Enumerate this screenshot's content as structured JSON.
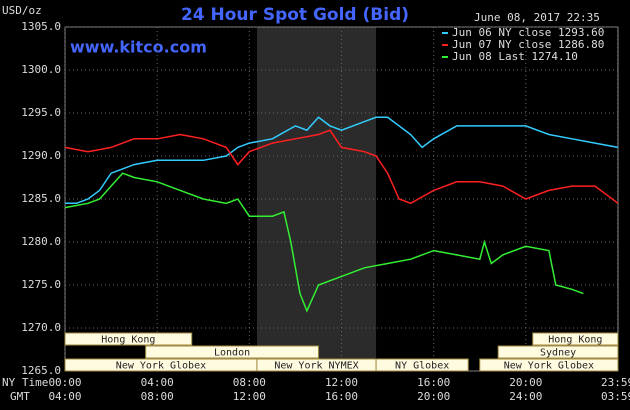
{
  "chart_data": {
    "type": "line",
    "title": "24 Hour Spot Gold (Bid)",
    "subtitle": "www.kitco.com",
    "timestamp": "June 08, 2017 22:35",
    "y_label": "USD/oz",
    "x_label": "NY Time",
    "x2_label": "GMT",
    "xlim": [
      0,
      24
    ],
    "xticks": [
      {
        "value": 0,
        "label": "00:00"
      },
      {
        "value": 4,
        "label": "04:00"
      },
      {
        "value": 8,
        "label": "08:00"
      },
      {
        "value": 12,
        "label": "12:00"
      },
      {
        "value": 16,
        "label": "16:00"
      },
      {
        "value": 20,
        "label": "20:00"
      },
      {
        "value": 23.98,
        "label": "23:59"
      }
    ],
    "gmt_tick_labels": [
      "04:00",
      "08:00",
      "12:00",
      "16:00",
      "20:00",
      "24:00",
      "03:59"
    ],
    "ylim": [
      1265,
      1305
    ],
    "yticks": [
      {
        "value": 1265,
        "label": "1265.0"
      },
      {
        "value": 1270,
        "label": "1270.0"
      },
      {
        "value": 1275,
        "label": "1275.0"
      },
      {
        "value": 1280,
        "label": "1280.0"
      },
      {
        "value": 1285,
        "label": "1285.0"
      },
      {
        "value": 1290,
        "label": "1290.0"
      },
      {
        "value": 1295,
        "label": "1295.0"
      },
      {
        "value": 1300,
        "label": "1300.0"
      },
      {
        "value": 1305,
        "label": "1305.0"
      }
    ],
    "grid": true,
    "legend": "upper right",
    "shaded_region": [
      8.33,
      13.5
    ],
    "session_rows": [
      [
        {
          "label": "Hong Kong",
          "start": 0,
          "end": 5.5
        },
        {
          "label": "Hong Kong",
          "start": 20.3,
          "end": 24
        }
      ],
      [
        {
          "label": "London",
          "start": 3.5,
          "end": 11
        },
        {
          "label": "Sydney",
          "start": 18.8,
          "end": 24
        }
      ],
      [
        {
          "label": "New York Globex",
          "start": 0,
          "end": 8.33
        },
        {
          "label": "New York NYMEX",
          "start": 8.33,
          "end": 13.5
        },
        {
          "label": "NY Globex",
          "start": 13.5,
          "end": 17.5
        },
        {
          "label": "New York Globex",
          "start": 18,
          "end": 24
        }
      ]
    ],
    "series": [
      {
        "name": "Jun 06 NY close 1293.60",
        "color": "#33ccff",
        "x": [
          0,
          0.5,
          1,
          1.5,
          2,
          2.5,
          3,
          4,
          5,
          6,
          7,
          7.5,
          8,
          9,
          10,
          10.5,
          11,
          11.5,
          12,
          13,
          13.5,
          14,
          15,
          15.5,
          16,
          17,
          18,
          19,
          20,
          21,
          22,
          23,
          24
        ],
        "values": [
          1284.5,
          1284.5,
          1285,
          1286,
          1288,
          1288.5,
          1289,
          1289.5,
          1289.5,
          1289.5,
          1290,
          1291,
          1291.5,
          1292,
          1293.5,
          1293,
          1294.5,
          1293.5,
          1293,
          1294,
          1294.5,
          1294.5,
          1292.5,
          1291,
          1292,
          1293.5,
          1293.5,
          1293.5,
          1293.5,
          1292.5,
          1292,
          1291.5,
          1291
        ]
      },
      {
        "name": "Jun 07 NY close 1286.80",
        "color": "#ff2020",
        "x": [
          0,
          1,
          2,
          3,
          4,
          5,
          6,
          7,
          7.5,
          8,
          9,
          10,
          11,
          11.5,
          12,
          13,
          13.5,
          14,
          14.5,
          15,
          16,
          17,
          18,
          19,
          20,
          21,
          22,
          23,
          23.5,
          24
        ],
        "values": [
          1291,
          1290.5,
          1291,
          1292,
          1292,
          1292.5,
          1292,
          1291,
          1289,
          1290.5,
          1291.5,
          1292,
          1292.5,
          1293,
          1291,
          1290.5,
          1290,
          1288,
          1285,
          1284.5,
          1286,
          1287,
          1287,
          1286.5,
          1285,
          1286,
          1286.5,
          1286.5,
          1285.5,
          1284.5
        ]
      },
      {
        "name": "Jun 08 Last 1274.10",
        "color": "#33ee33",
        "x": [
          0,
          1,
          1.5,
          2,
          2.5,
          3,
          4,
          5,
          6,
          7,
          7.5,
          8,
          9,
          9.5,
          9.8,
          10.2,
          10.5,
          11,
          12,
          13,
          14,
          15,
          16,
          17,
          18,
          18.2,
          18.5,
          19,
          20,
          21,
          21.3,
          22,
          22.5
        ],
        "values": [
          1284,
          1284.5,
          1285,
          1286.5,
          1288,
          1287.5,
          1287,
          1286,
          1285,
          1284.5,
          1285,
          1283,
          1283,
          1283.5,
          1280,
          1274,
          1272,
          1275,
          1276,
          1277,
          1277.5,
          1278,
          1279,
          1278.5,
          1278,
          1280,
          1277.5,
          1278.5,
          1279.5,
          1279,
          1275,
          1274.5,
          1274
        ]
      }
    ]
  }
}
